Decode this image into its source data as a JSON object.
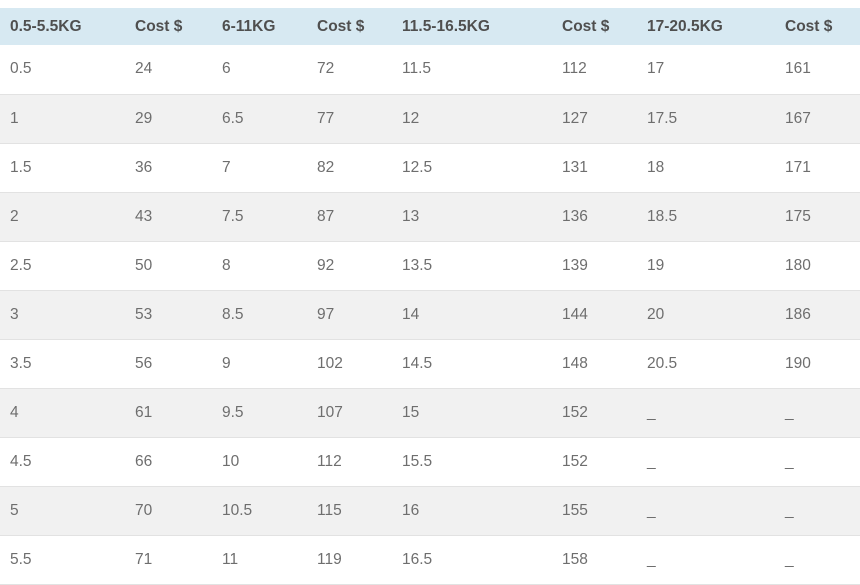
{
  "rate_table": {
    "headers": [
      "0.5-5.5KG",
      "Cost $",
      "6-11KG",
      "Cost $",
      "11.5-16.5KG",
      "Cost $",
      "17-20.5KG",
      "Cost $"
    ],
    "rows": [
      [
        "0.5",
        "24",
        "6",
        "72",
        "11.5",
        "112",
        "17",
        "161"
      ],
      [
        "1",
        "29",
        "6.5",
        "77",
        "12",
        "127",
        "17.5",
        "167"
      ],
      [
        "1.5",
        "36",
        "7",
        "82",
        "12.5",
        "131",
        "18",
        "171"
      ],
      [
        "2",
        "43",
        "7.5",
        "87",
        "13",
        "136",
        "18.5",
        "175"
      ],
      [
        "2.5",
        "50",
        "8",
        "92",
        "13.5",
        "139",
        "19",
        "180"
      ],
      [
        "3",
        "53",
        "8.5",
        "97",
        "14",
        "144",
        "20",
        "186"
      ],
      [
        "3.5",
        "56",
        "9",
        "102",
        "14.5",
        "148",
        "20.5",
        "190"
      ],
      [
        "4",
        "61",
        "9.5",
        "107",
        "15",
        "152",
        "_",
        "_"
      ],
      [
        "4.5",
        "66",
        "10",
        "112",
        "15.5",
        "152",
        "_",
        "_"
      ],
      [
        "5",
        "70",
        "10.5",
        "115",
        "16",
        "155",
        "_",
        "_"
      ],
      [
        "5.5",
        "71",
        "11",
        "119",
        "16.5",
        "158",
        "_",
        "_"
      ]
    ],
    "colors": {
      "header_bg": "#d7e9f2",
      "header_text": "#4f4f4f",
      "row_alt_bg": "#f1f1f1",
      "cell_text": "#6e6e6e",
      "row_border": "#e2e2e2",
      "page_bg": "#ffffff"
    }
  }
}
